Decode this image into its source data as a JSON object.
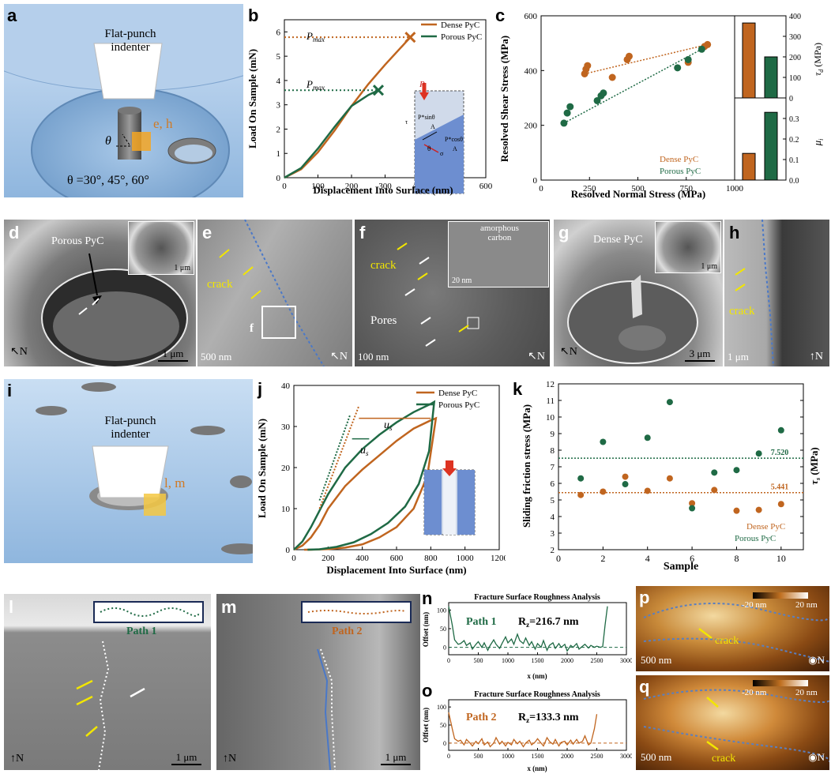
{
  "panels": {
    "a": {
      "label": "a",
      "indenter": "Flat-punch\nindenter",
      "indenter_l1": "Flat-punch",
      "indenter_l2": "indenter",
      "mark": "e, h",
      "theta": "θ",
      "angles": "θ =30°,  45°,  60°"
    },
    "b": {
      "label": "b",
      "xlabel": "Displacement Into Surface (nm)",
      "ylabel": "Load On Sample (mN)",
      "pmax": "P",
      "pmax_sub": "max",
      "legend": [
        "Dense PyC",
        "Porous PyC"
      ],
      "xticks": [
        "0",
        "100",
        "200",
        "300",
        "400",
        "500",
        "600"
      ],
      "yticks": [
        "0",
        "1",
        "2",
        "3",
        "4",
        "5",
        "6"
      ],
      "inset": {
        "p": "P",
        "f1": "P*sinθ",
        "f1d": "A",
        "f2": "P*cosθ",
        "f2d": "A",
        "tau": "τ",
        "sigma": "σ",
        "theta": "θ"
      }
    },
    "c": {
      "label": "c",
      "xlabel": "Resolved Normal Stress (MPa)",
      "ylabel": "Resolved Shear Stress (MPa)",
      "xticks": [
        "0",
        "250",
        "500",
        "750",
        "1000"
      ],
      "yticks": [
        "0",
        "200",
        "400",
        "600"
      ],
      "legend": [
        "Dense PyC",
        "Porous PyC"
      ],
      "inset_top": {
        "ylabel": "τ",
        "ylabel_sub": "d",
        "unit": " (MPa)",
        "yticks": [
          "0",
          "100",
          "200",
          "300",
          "400"
        ]
      },
      "inset_bot": {
        "ylabel": "μ",
        "ylabel_sub": "i",
        "yticks": [
          "0.0",
          "0.1",
          "0.2",
          "0.3"
        ]
      }
    },
    "d": {
      "label": "d",
      "text": "Porous PyC",
      "scale": "1 μm",
      "inset_scale": "1 μm",
      "north": "N"
    },
    "e": {
      "label": "e",
      "crack": "crack",
      "box": "f",
      "scale": "500 nm",
      "north": "N"
    },
    "f": {
      "label": "f",
      "crack": "crack",
      "pores": "Pores",
      "inset_text1": "amorphous",
      "inset_text2": "carbon",
      "inset_scale": "20 nm",
      "scale": "100 nm",
      "north": "N"
    },
    "g": {
      "label": "g",
      "text": "Dense PyC",
      "scale": "3 μm",
      "inset_scale": "1 μm",
      "north": "N"
    },
    "h": {
      "label": "h",
      "crack": "crack",
      "scale": "1 μm",
      "north": "N"
    },
    "i": {
      "label": "i",
      "indenter_l1": "Flat-punch",
      "indenter_l2": "indenter",
      "mark": "l, m"
    },
    "j": {
      "label": "j",
      "xlabel": "Displacement Into Surface (nm)",
      "ylabel": "Load On Sample (mN)",
      "legend": [
        "Dense PyC",
        "Porous PyC"
      ],
      "us": "u",
      "us_sub": "s",
      "xticks": [
        "0",
        "200",
        "400",
        "600",
        "800",
        "1000",
        "1200"
      ],
      "yticks": [
        "0",
        "10",
        "20",
        "30",
        "40"
      ]
    },
    "k": {
      "label": "k",
      "xlabel": "Sample",
      "ylabel": "Sliding friction stress (MPa)",
      "ylabel_right": "τ",
      "ylabel_right_sub": "s",
      "ylabel_right_unit": " (MPa)",
      "xticks": [
        "0",
        "2",
        "4",
        "6",
        "8",
        "10"
      ],
      "yticks": [
        "2",
        "3",
        "4",
        "5",
        "6",
        "7",
        "8",
        "9",
        "10",
        "11",
        "12"
      ],
      "legend": [
        "Dense PyC",
        "Porous PyC"
      ],
      "line_porous": "7.520",
      "line_dense": "5.441"
    },
    "l": {
      "label": "l",
      "path": "Path 1",
      "scale": "1 μm",
      "north": "N"
    },
    "m": {
      "label": "m",
      "path": "Path 2",
      "scale": "1 μm",
      "north": "N"
    },
    "n": {
      "label": "n",
      "title": "Fracture Surface Roughness Analysis",
      "path": "Path 1",
      "rz": "R",
      "rz_sub": "z",
      "rz_val": "=216.7 nm",
      "xlabel": "x (nm)",
      "ylabel": "Offset (nm)",
      "xticks": [
        "0",
        "500",
        "1000",
        "1500",
        "2000",
        "2500",
        "3000"
      ],
      "yticks": [
        "0",
        "50",
        "100"
      ]
    },
    "o": {
      "label": "o",
      "title": "Fracture Surface Roughness Analysis",
      "path": "Path 2",
      "rz": "R",
      "rz_sub": "z",
      "rz_val": "=133.3 nm",
      "xlabel": "x (nm)",
      "ylabel": "Offset (nm)",
      "xticks": [
        "0",
        "500",
        "1000",
        "1500",
        "2000",
        "2500",
        "3000"
      ],
      "yticks": [
        "0",
        "50",
        "100"
      ]
    },
    "p": {
      "label": "p",
      "cb_min": "-20 nm",
      "cb_max": "20 nm",
      "crack": "crack",
      "scale": "500 nm",
      "north": "N"
    },
    "q": {
      "label": "q",
      "cb_min": "-20 nm",
      "cb_max": "20 nm",
      "crack": "crack",
      "scale": "500 nm",
      "north": "N"
    }
  },
  "colors": {
    "dense": "#c0651f",
    "porous": "#1f6a45",
    "crack_arrow": "#f2e600",
    "path": "#6a8fc8"
  },
  "chart_data": [
    {
      "id": "b",
      "type": "line",
      "xlabel": "Displacement Into Surface (nm)",
      "ylabel": "Load On Sample (mN)",
      "xlim": [
        0,
        600
      ],
      "ylim": [
        0,
        6.5
      ],
      "series": [
        {
          "name": "Dense PyC",
          "x": [
            0,
            50,
            100,
            150,
            200,
            250,
            300,
            350,
            375
          ],
          "y": [
            0,
            0.35,
            1.05,
            1.95,
            2.95,
            3.85,
            4.65,
            5.4,
            5.78
          ],
          "pmax": 5.78
        },
        {
          "name": "Porous PyC",
          "x": [
            0,
            50,
            100,
            150,
            200,
            250,
            280
          ],
          "y": [
            0,
            0.4,
            1.2,
            2.1,
            2.95,
            3.4,
            3.6
          ],
          "pmax": 3.6
        }
      ]
    },
    {
      "id": "c",
      "type": "scatter",
      "xlabel": "Resolved Normal Stress (MPa)",
      "ylabel": "Resolved Shear Stress (MPa)",
      "xlim": [
        0,
        1000
      ],
      "ylim": [
        0,
        600
      ],
      "series": [
        {
          "name": "Dense PyC",
          "points": [
            [
              225,
              388
            ],
            [
              232,
              405
            ],
            [
              240,
              418
            ],
            [
              368,
              375
            ],
            [
              445,
              440
            ],
            [
              455,
              452
            ],
            [
              760,
              430
            ],
            [
              845,
              488
            ],
            [
              860,
              495
            ]
          ]
        },
        {
          "name": "Porous PyC",
          "points": [
            [
              118,
              208
            ],
            [
              135,
              245
            ],
            [
              150,
              268
            ],
            [
              290,
              290
            ],
            [
              310,
              308
            ],
            [
              322,
              318
            ],
            [
              705,
              410
            ],
            [
              760,
              440
            ],
            [
              830,
              478
            ]
          ]
        }
      ]
    },
    {
      "id": "c_inset",
      "type": "bar",
      "categories": [
        "Dense PyC",
        "Porous PyC"
      ],
      "tau_d": [
        365,
        200
      ],
      "tau_d_ylim": [
        0,
        400
      ],
      "mu_i": [
        0.13,
        0.33
      ],
      "mu_i_ylim": [
        0,
        0.4
      ]
    },
    {
      "id": "j",
      "type": "line",
      "xlabel": "Displacement Into Surface (nm)",
      "ylabel": "Load On Sample (mN)",
      "xlim": [
        0,
        1200
      ],
      "ylim": [
        0,
        40
      ],
      "series": [
        {
          "name": "Dense PyC",
          "load_x": [
            0,
            50,
            100,
            150,
            200,
            300,
            400,
            500,
            600,
            700,
            800,
            830
          ],
          "load_y": [
            0,
            1,
            3,
            6,
            10,
            15.5,
            19.5,
            23,
            26.5,
            29.5,
            31.5,
            32
          ],
          "unload_x": [
            830,
            780,
            700,
            600,
            500,
            400,
            300,
            200,
            100,
            60
          ],
          "unload_y": [
            32,
            18,
            10,
            5.5,
            3,
            1.3,
            0.5,
            0.15,
            0,
            0
          ]
        },
        {
          "name": "Porous PyC",
          "load_x": [
            0,
            50,
            100,
            150,
            200,
            300,
            400,
            500,
            600,
            700,
            800,
            820
          ],
          "load_y": [
            0,
            2,
            5.5,
            9.5,
            13.5,
            20,
            24.5,
            28,
            31,
            33.5,
            35.5,
            36
          ],
          "unload_x": [
            820,
            790,
            730,
            650,
            550,
            450,
            350,
            250,
            150,
            80
          ],
          "unload_y": [
            36,
            24,
            16,
            10.5,
            6.5,
            3.8,
            1.8,
            0.7,
            0.1,
            0
          ]
        }
      ]
    },
    {
      "id": "k",
      "type": "scatter",
      "xlabel": "Sample",
      "ylabel": "Sliding friction stress (MPa)",
      "xlim": [
        0,
        11
      ],
      "ylim": [
        2,
        12
      ],
      "series": [
        {
          "name": "Dense PyC",
          "x": [
            1,
            2,
            3,
            4,
            5,
            6,
            7,
            8,
            9,
            10
          ],
          "y": [
            5.3,
            5.5,
            6.4,
            5.55,
            6.3,
            4.8,
            5.6,
            4.35,
            4.4,
            4.75
          ],
          "mean": 5.441
        },
        {
          "name": "Porous PyC",
          "x": [
            1,
            2,
            3,
            4,
            5,
            6,
            7,
            8,
            9,
            10
          ],
          "y": [
            6.3,
            8.5,
            5.95,
            8.75,
            10.9,
            4.5,
            6.65,
            6.8,
            7.8,
            9.2
          ],
          "mean": 7.52
        }
      ]
    },
    {
      "id": "n",
      "type": "line",
      "title": "Fracture Surface Roughness Analysis",
      "xlabel": "x (nm)",
      "ylabel": "Offset (nm)",
      "xlim": [
        0,
        3000
      ],
      "ylim": [
        -20,
        120
      ],
      "series": [
        {
          "name": "Path 1",
          "x": [
            0,
            60,
            100,
            160,
            200,
            260,
            300,
            360,
            400,
            460,
            500,
            560,
            600,
            660,
            700,
            760,
            800,
            860,
            900,
            960,
            1000,
            1060,
            1100,
            1160,
            1200,
            1260,
            1300,
            1360,
            1400,
            1460,
            1500,
            1560,
            1600,
            1660,
            1700,
            1760,
            1800,
            1860,
            1900,
            1960,
            2000,
            2060,
            2100,
            2160,
            2200,
            2260,
            2300,
            2360,
            2400,
            2460,
            2500,
            2560,
            2600,
            2640,
            2680
          ],
          "y": [
            110,
            60,
            20,
            8,
            10,
            18,
            5,
            12,
            -5,
            8,
            15,
            0,
            12,
            -8,
            5,
            20,
            8,
            -3,
            10,
            28,
            12,
            22,
            8,
            35,
            18,
            10,
            25,
            5,
            15,
            -5,
            10,
            0,
            18,
            -8,
            5,
            12,
            -3,
            10,
            0,
            8,
            -10,
            5,
            0,
            10,
            -5,
            3,
            8,
            -2,
            5,
            0,
            3,
            0,
            2,
            60,
            110
          ]
        }
      ]
    },
    {
      "id": "o",
      "type": "line",
      "title": "Fracture Surface Roughness Analysis",
      "xlabel": "x (nm)",
      "ylabel": "Offset (nm)",
      "xlim": [
        0,
        3000
      ],
      "ylim": [
        -20,
        120
      ],
      "series": [
        {
          "name": "Path 2",
          "x": [
            0,
            60,
            100,
            160,
            200,
            260,
            300,
            360,
            400,
            460,
            500,
            560,
            600,
            660,
            700,
            760,
            800,
            860,
            900,
            960,
            1000,
            1060,
            1100,
            1160,
            1200,
            1260,
            1300,
            1360,
            1400,
            1460,
            1500,
            1560,
            1600,
            1660,
            1700,
            1760,
            1800,
            1860,
            1900,
            1960,
            2000,
            2060,
            2100,
            2160,
            2200,
            2260,
            2300,
            2360,
            2400,
            2460,
            2500
          ],
          "y": [
            85,
            40,
            12,
            5,
            8,
            -5,
            10,
            0,
            -8,
            5,
            -2,
            12,
            -5,
            3,
            -10,
            0,
            15,
            -3,
            5,
            -8,
            2,
            -5,
            10,
            -2,
            5,
            -10,
            0,
            8,
            -5,
            3,
            12,
            0,
            -8,
            15,
            5,
            -3,
            10,
            -8,
            2,
            5,
            -5,
            8,
            -3,
            10,
            0,
            5,
            20,
            -5,
            0,
            40,
            80
          ]
        }
      ]
    }
  ]
}
